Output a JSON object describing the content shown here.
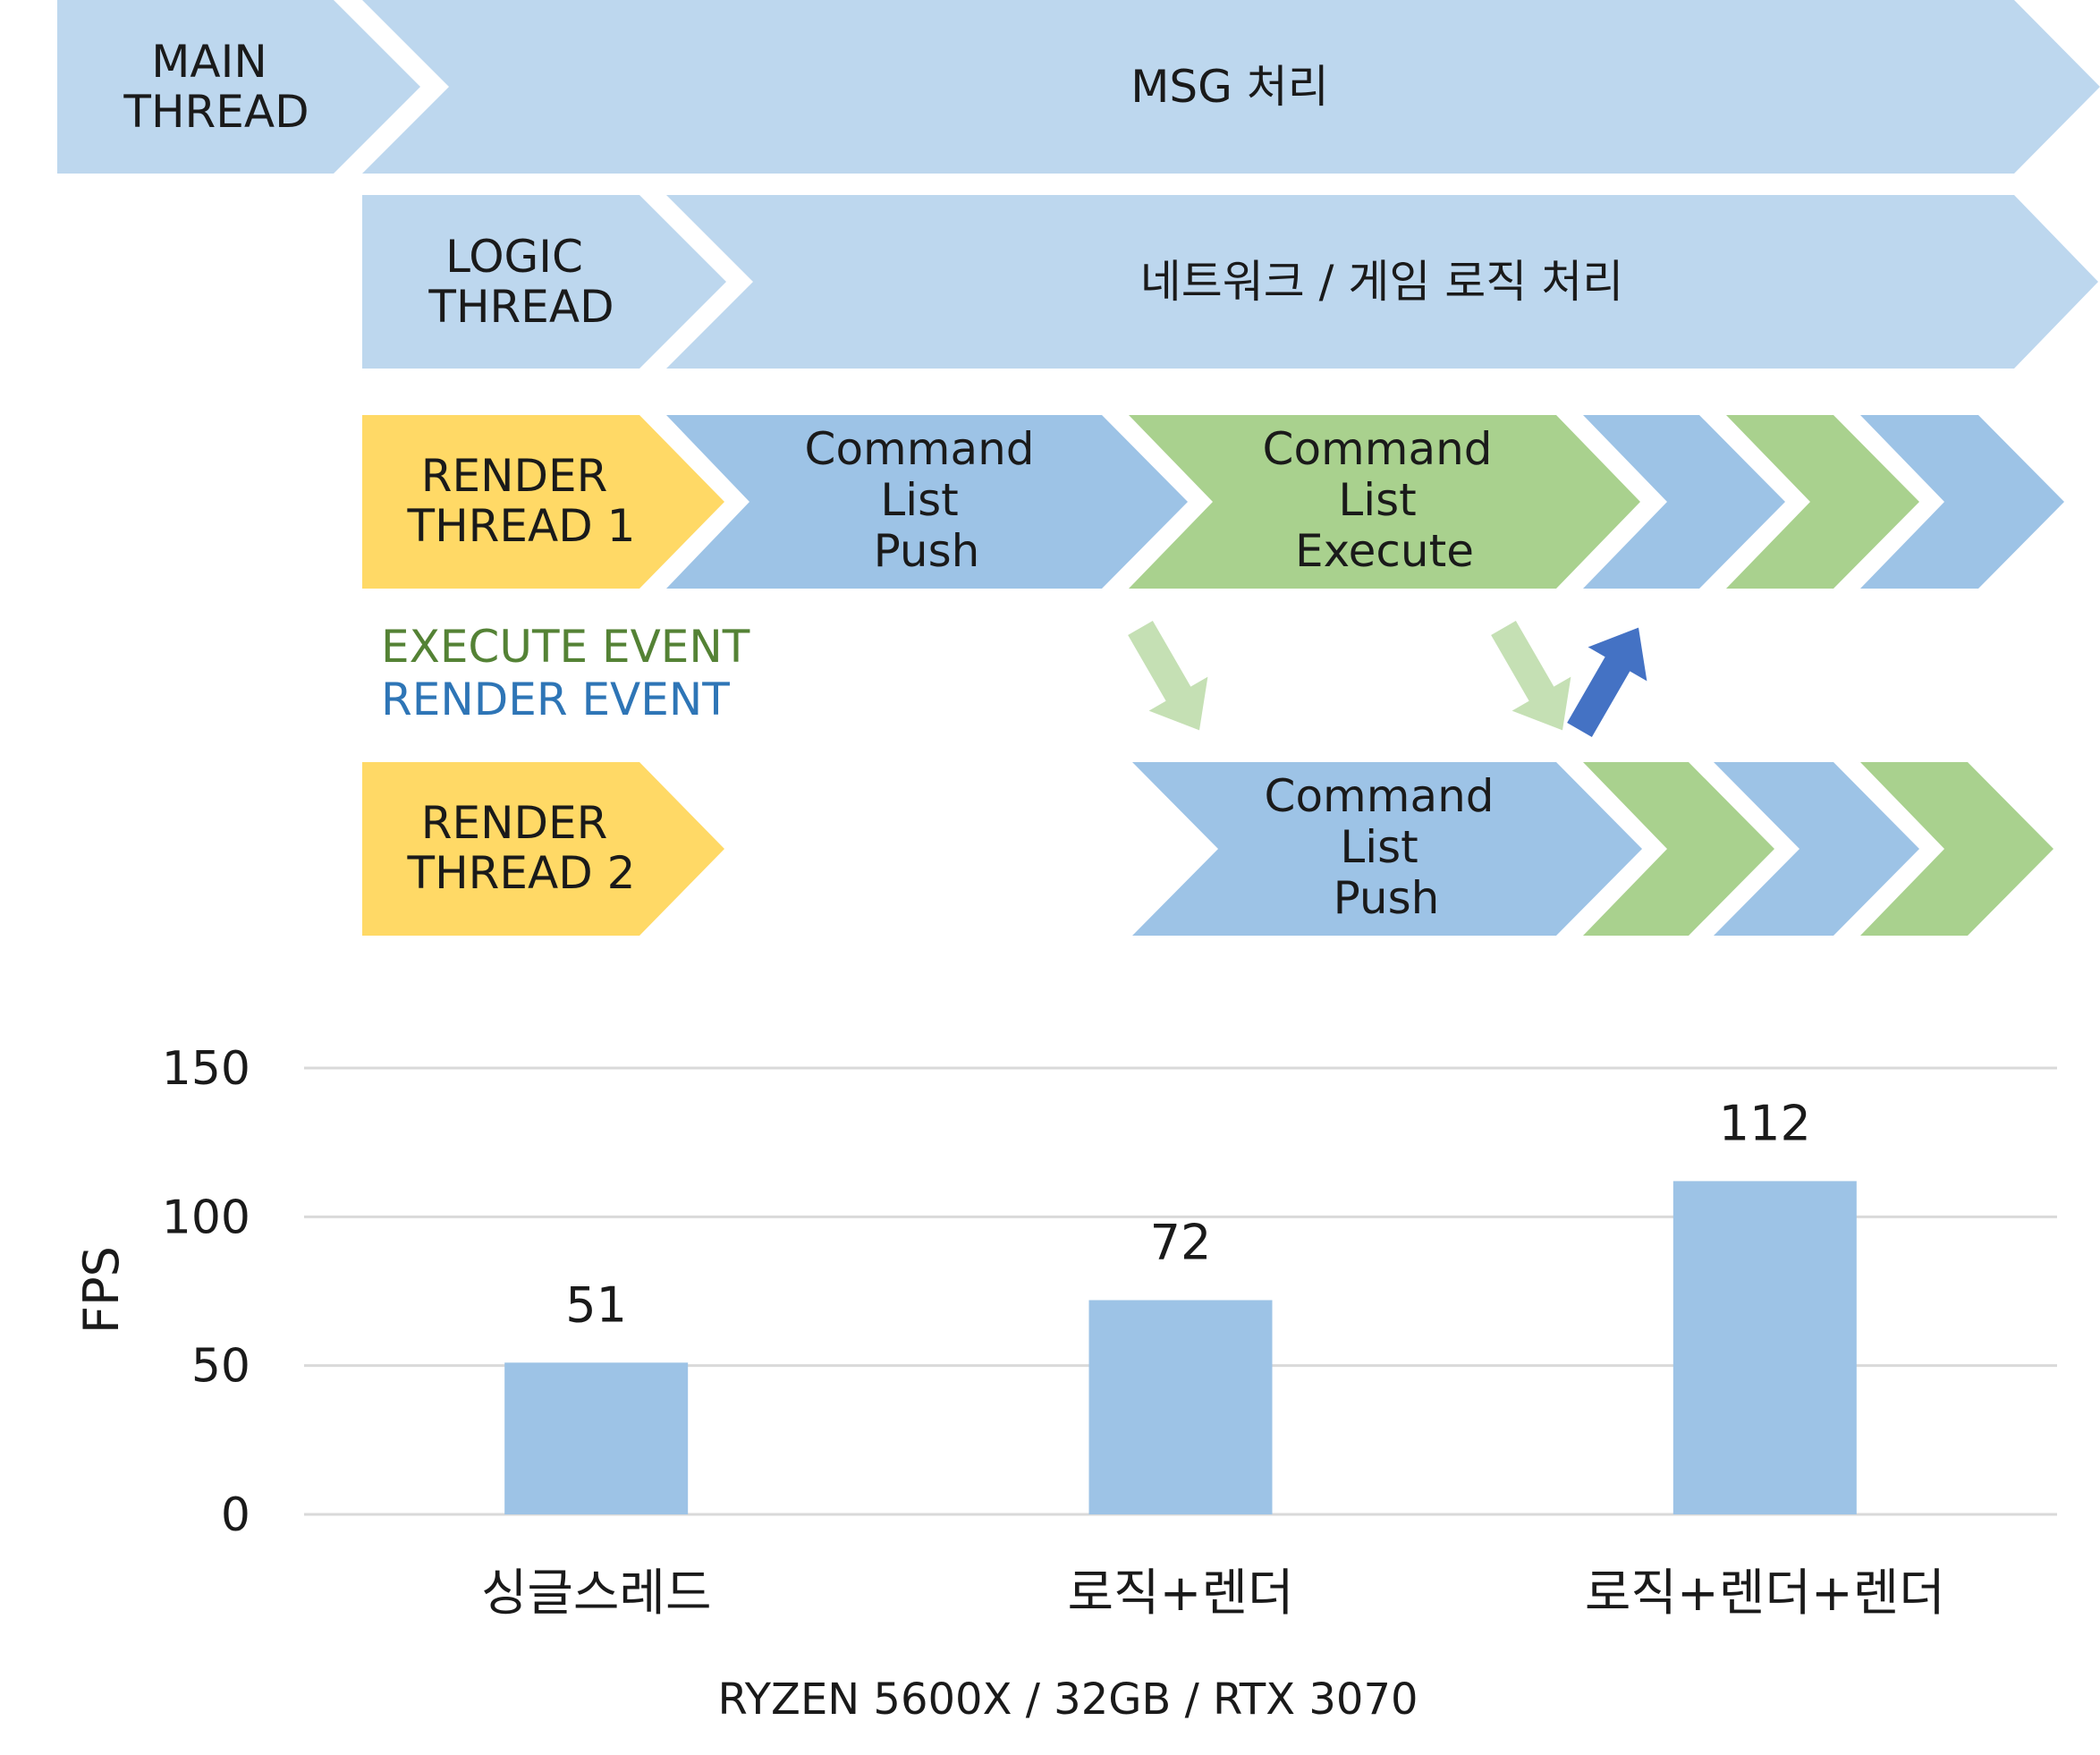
{
  "diagram": {
    "main_thread": {
      "label_lines": [
        "MAIN",
        "THREAD"
      ],
      "task": "MSG 처리"
    },
    "logic_thread": {
      "label_lines": [
        "LOGIC",
        "THREAD"
      ],
      "task": "네트워크 / 게임 로직 처리"
    },
    "render_thread_1": {
      "label_lines": [
        "RENDER",
        "THREAD 1"
      ],
      "push_lines": [
        "Command",
        "List",
        "Push"
      ],
      "execute_lines": [
        "Command",
        "List",
        "Execute"
      ]
    },
    "render_thread_2": {
      "label_lines": [
        "RENDER",
        "THREAD 2"
      ],
      "push_lines": [
        "Command",
        "List",
        "Push"
      ]
    },
    "legend": {
      "execute_event": "EXECUTE EVENT",
      "render_event": "RENDER EVENT"
    },
    "colors": {
      "thread_blue_light": "#BDD7EE",
      "command_blue": "#9DC3E6",
      "command_green": "#A9D18E",
      "thread_label_yellow": "#FFD966",
      "execute_event_text": "#548235",
      "render_event_text": "#2E75B6",
      "execute_event_arrow": "#C5E0B4",
      "render_event_arrow": "#4472C4"
    }
  },
  "chart_data": {
    "type": "bar",
    "categories": [
      "싱글스레드",
      "로직+렌더",
      "로직+렌더+렌더"
    ],
    "values": [
      51,
      72,
      112
    ],
    "ylabel": "FPS",
    "xlabel": "RYZEN 5600X / 32GB / RTX 3070",
    "ylim": [
      0,
      150
    ],
    "yticks": [
      0,
      50,
      100,
      150
    ],
    "grid": true,
    "bar_color": "#9DC3E6",
    "data_labels": [
      "51",
      "72",
      "112"
    ]
  }
}
